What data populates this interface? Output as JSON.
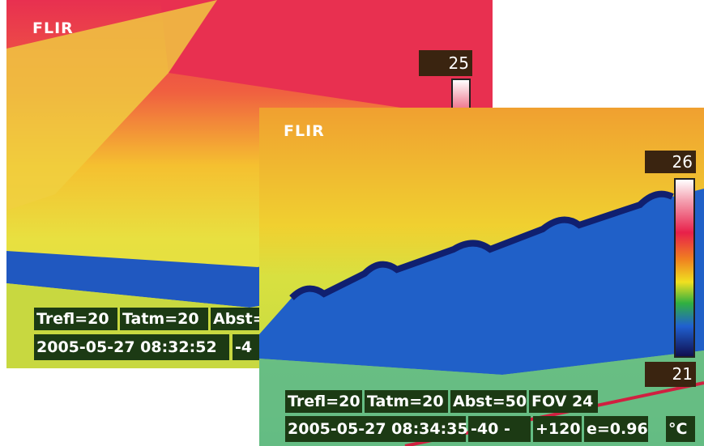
{
  "images": [
    {
      "logo": "FLIR",
      "scale_max": "25",
      "info_row1": [
        "Trefl=20",
        "Tatm=20",
        "Abst="
      ],
      "info_row2": [
        "2005-05-27 08:32:52",
        "-4"
      ]
    },
    {
      "logo": "FLIR",
      "scale_max": "26",
      "scale_min": "21",
      "info_row1": [
        "Trefl=20",
        "Tatm=20",
        "Abst=50",
        "FOV 24"
      ],
      "info_row2": [
        "2005-05-27 08:34:35",
        "-40 -",
        "+120",
        "e=0.96"
      ],
      "unit": "°C"
    }
  ]
}
